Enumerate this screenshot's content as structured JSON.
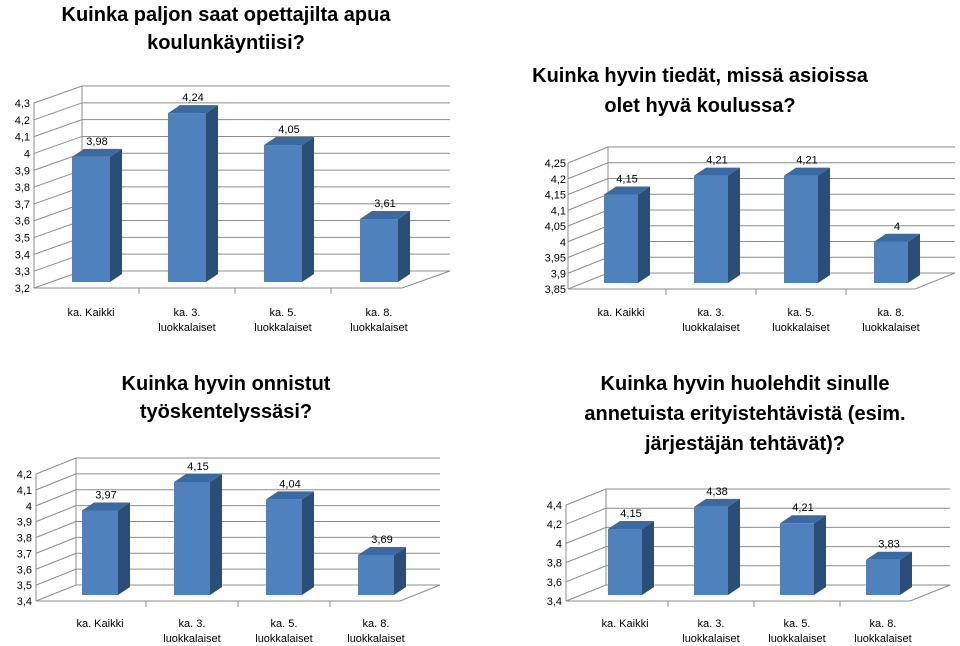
{
  "colors": {
    "bar_front": "#4f81bd",
    "bar_side": "#2c4d75",
    "bar_top": "#3a6aa3",
    "grid": "#8c8c8c"
  },
  "chart_data": [
    {
      "type": "bar",
      "title": [
        "Kuinka paljon saat opettajilta apua",
        "koulunkäyntiisi?"
      ],
      "categories": [
        [
          "ka. Kaikki"
        ],
        [
          "ka. 3.",
          "luokkalaiset"
        ],
        [
          "ka. 5.",
          "luokkalaiset"
        ],
        [
          "ka. 8.",
          "luokkalaiset"
        ]
      ],
      "values": [
        3.98,
        4.24,
        4.05,
        3.61
      ],
      "value_labels": [
        "3,98",
        "4,24",
        "4,05",
        "3,61"
      ],
      "ylim": [
        3.2,
        4.3
      ],
      "ticks": [
        "3,2",
        "3,3",
        "3,4",
        "3,5",
        "3,6",
        "3,7",
        "3,8",
        "3,9",
        "4",
        "4,1",
        "4,2",
        "4,3"
      ],
      "grid": true
    },
    {
      "type": "bar",
      "title": [
        "Kuinka hyvin tiedät, missä asioissa",
        "olet hyvä koulussa?"
      ],
      "categories": [
        [
          "ka. Kaikki"
        ],
        [
          "ka. 3.",
          "luokkalaiset"
        ],
        [
          "ka. 5.",
          "luokkalaiset"
        ],
        [
          "ka. 8.",
          "luokkalaiset"
        ]
      ],
      "values": [
        4.15,
        4.21,
        4.21,
        4.0
      ],
      "value_labels": [
        "4,15",
        "4,21",
        "4,21",
        "4"
      ],
      "ylim": [
        3.85,
        4.25
      ],
      "ticks": [
        "3,85",
        "3,9",
        "3,95",
        "4",
        "4,05",
        "4,1",
        "4,15",
        "4,2",
        "4,25"
      ],
      "grid": true
    },
    {
      "type": "bar",
      "title": [
        "Kuinka hyvin onnistut",
        "työskentelyssäsi?"
      ],
      "categories": [
        [
          "ka. Kaikki"
        ],
        [
          "ka. 3.",
          "luokkalaiset"
        ],
        [
          "ka. 5.",
          "luokkalaiset"
        ],
        [
          "ka. 8.",
          "luokkalaiset"
        ]
      ],
      "values": [
        3.97,
        4.15,
        4.04,
        3.69
      ],
      "value_labels": [
        "3,97",
        "4,15",
        "4,04",
        "3,69"
      ],
      "ylim": [
        3.4,
        4.2
      ],
      "ticks": [
        "3,4",
        "3,5",
        "3,6",
        "3,7",
        "3,8",
        "3,9",
        "4",
        "4,1",
        "4,2"
      ],
      "grid": true
    },
    {
      "type": "bar",
      "title": [
        "Kuinka hyvin huolehdit sinulle",
        "annetuista erityistehtävistä (esim.",
        "järjestäjän tehtävät)?"
      ],
      "categories": [
        [
          "ka. Kaikki"
        ],
        [
          "ka. 3.",
          "luokkalaiset"
        ],
        [
          "ka. 5.",
          "luokkalaiset"
        ],
        [
          "ka. 8.",
          "luokkalaiset"
        ]
      ],
      "values": [
        4.15,
        4.38,
        4.21,
        3.83
      ],
      "value_labels": [
        "4,15",
        "4,38",
        "4,21",
        "3,83"
      ],
      "ylim": [
        3.4,
        4.4
      ],
      "ticks": [
        "3,4",
        "3,6",
        "3,8",
        "4",
        "4,2",
        "4,4"
      ],
      "grid": true
    }
  ]
}
